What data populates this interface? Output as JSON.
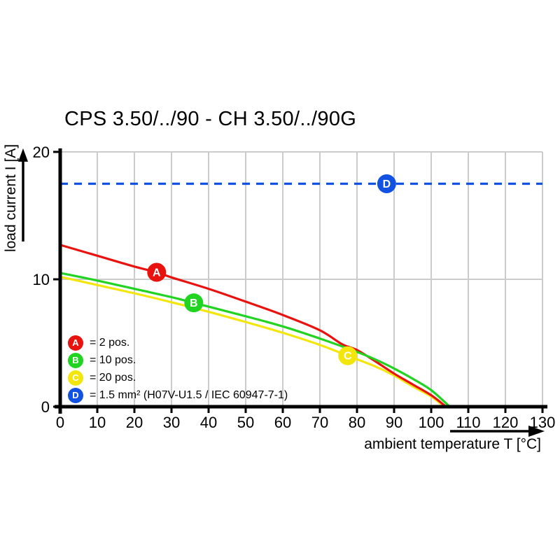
{
  "figure": {
    "background": "#ffffff"
  },
  "chart_data": {
    "type": "line",
    "title": "CPS 3.50/../90 - CH 3.50/../90G",
    "xlabel": "ambient temperature T [°C]",
    "ylabel": "load current I [A]",
    "xlim": [
      0,
      130
    ],
    "ylim": [
      0,
      20
    ],
    "x_ticks": [
      0,
      10,
      20,
      30,
      40,
      50,
      60,
      70,
      80,
      90,
      100,
      110,
      120,
      130
    ],
    "y_ticks": [
      0,
      10,
      20
    ],
    "grid": true,
    "grid_color": "#cccccc",
    "axis_color": "#000000",
    "legend_position": "inside-bottom-left",
    "series": [
      {
        "id": "A",
        "label": "= 2 pos.",
        "color": "#e8120f",
        "line_style": "solid",
        "marker_at": [
          26,
          10.55
        ],
        "points": [
          [
            0,
            12.7
          ],
          [
            10,
            11.85
          ],
          [
            20,
            11.0
          ],
          [
            26,
            10.55
          ],
          [
            30,
            10.15
          ],
          [
            40,
            9.25
          ],
          [
            50,
            8.25
          ],
          [
            60,
            7.2
          ],
          [
            70,
            6.0
          ],
          [
            76,
            4.9
          ],
          [
            80,
            4.45
          ],
          [
            85,
            3.55
          ],
          [
            90,
            2.6
          ],
          [
            95,
            1.75
          ],
          [
            100,
            0.9
          ],
          [
            104,
            0
          ]
        ]
      },
      {
        "id": "B",
        "label": "= 10 pos.",
        "color": "#21d421",
        "line_style": "solid",
        "marker_at": [
          36,
          8.15
        ],
        "points": [
          [
            0,
            10.5
          ],
          [
            10,
            9.9
          ],
          [
            20,
            9.25
          ],
          [
            30,
            8.6
          ],
          [
            36,
            8.15
          ],
          [
            40,
            7.85
          ],
          [
            50,
            7.1
          ],
          [
            60,
            6.3
          ],
          [
            70,
            5.35
          ],
          [
            80,
            4.3
          ],
          [
            85,
            3.7
          ],
          [
            90,
            3.0
          ],
          [
            95,
            2.2
          ],
          [
            100,
            1.3
          ],
          [
            105,
            0
          ]
        ]
      },
      {
        "id": "C",
        "label": "= 20 pos.",
        "color": "#f2e60d",
        "line_style": "solid",
        "marker_at": [
          77.5,
          4.0
        ],
        "points": [
          [
            0,
            10.2
          ],
          [
            10,
            9.55
          ],
          [
            20,
            8.9
          ],
          [
            30,
            8.2
          ],
          [
            40,
            7.45
          ],
          [
            50,
            6.65
          ],
          [
            60,
            5.8
          ],
          [
            70,
            4.85
          ],
          [
            77.5,
            4.0
          ],
          [
            85,
            3.15
          ],
          [
            90,
            2.45
          ],
          [
            95,
            1.6
          ],
          [
            100,
            0.8
          ],
          [
            103.5,
            0
          ]
        ]
      },
      {
        "id": "D",
        "label": "= 1.5 mm² (H07V-U1.5 / IEC 60947-7-1)",
        "color": "#1252e2",
        "line_style": "dashed",
        "marker_at": [
          88,
          17.5
        ],
        "points": [
          [
            0,
            17.5
          ],
          [
            130,
            17.5
          ]
        ]
      }
    ]
  }
}
